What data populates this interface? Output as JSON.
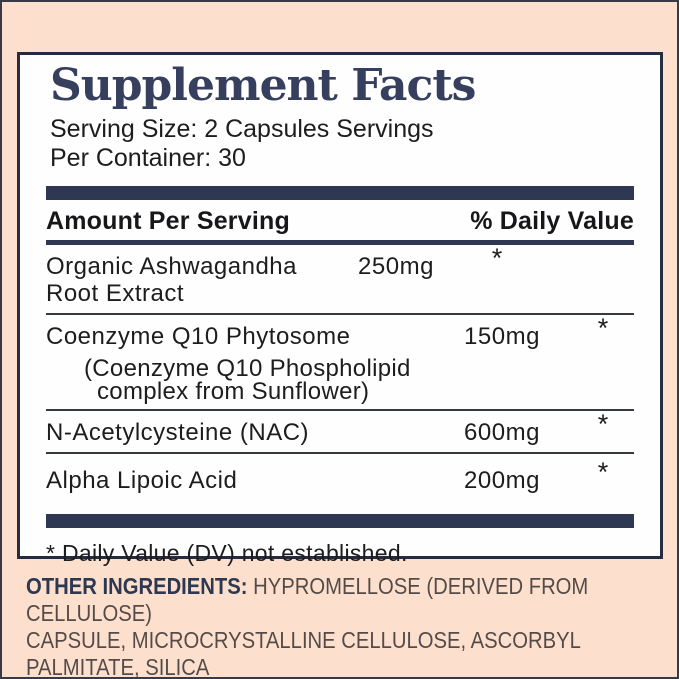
{
  "panel": {
    "title": "Supplement Facts",
    "serving_size": "Serving Size: 2 Capsules Servings",
    "per_container": "Per Container: 30",
    "columns": {
      "amount_header": "Amount Per Serving",
      "daily_value_header": "% Daily Value"
    },
    "rows": [
      {
        "name": "Organic Ashwagandha Root Extract",
        "amount": "250mg",
        "dv": "*"
      },
      {
        "name": "Coenzyme Q10 Phytosome",
        "amount": "150mg",
        "dv": "*",
        "note": "(Coenzyme Q10 Phospholipid complex from Sunflower)"
      },
      {
        "name": "N-Acetylcysteine (NAC)",
        "amount": "600mg",
        "dv": "*"
      },
      {
        "name": "Alpha Lipoic Acid",
        "amount": "200mg",
        "dv": "*"
      }
    ],
    "footnote": "* Daily Value (DV) not established."
  },
  "other_ingredients": {
    "label": "OTHER INGREDIENTS:",
    "line1": "HYPROMELLOSE (DERIVED FROM CELLULOSE)",
    "line2": "CAPSULE, MICROCRYSTALLINE CELLULOSE, ASCORBYL PALMITATE, SILICA"
  },
  "colors": {
    "background_peach": "#fce0cd",
    "navy_bars": "#2e3852",
    "title_navy": "#363f5e",
    "panel_border": "#262c3f",
    "body_text": "#1d1d1f",
    "ingredients_text": "#544b49"
  }
}
